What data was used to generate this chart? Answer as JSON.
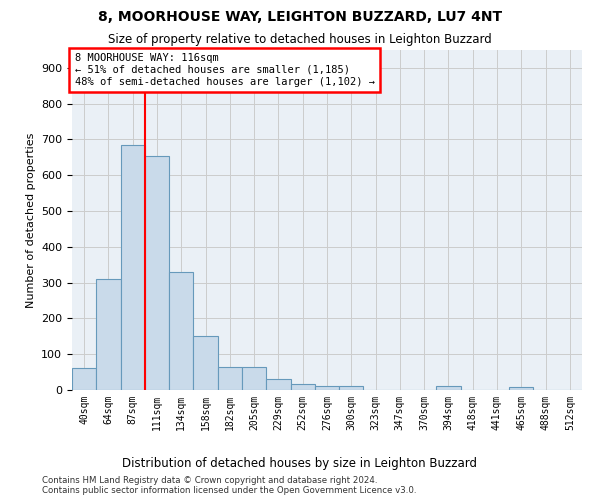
{
  "title1": "8, MOORHOUSE WAY, LEIGHTON BUZZARD, LU7 4NT",
  "title2": "Size of property relative to detached houses in Leighton Buzzard",
  "xlabel": "Distribution of detached houses by size in Leighton Buzzard",
  "ylabel": "Number of detached properties",
  "bar_labels": [
    "40sqm",
    "64sqm",
    "87sqm",
    "111sqm",
    "134sqm",
    "158sqm",
    "182sqm",
    "205sqm",
    "229sqm",
    "252sqm",
    "276sqm",
    "300sqm",
    "323sqm",
    "347sqm",
    "370sqm",
    "394sqm",
    "418sqm",
    "441sqm",
    "465sqm",
    "488sqm",
    "512sqm"
  ],
  "bar_values": [
    62,
    310,
    685,
    655,
    330,
    152,
    65,
    65,
    30,
    18,
    12,
    12,
    0,
    0,
    0,
    10,
    0,
    0,
    8,
    0,
    0
  ],
  "bar_color": "#c9daea",
  "bar_edge_color": "#6699bb",
  "vline_color": "red",
  "vline_x": 2.5,
  "annotation_line1": "8 MOORHOUSE WAY: 116sqm",
  "annotation_line2": "← 51% of detached houses are smaller (1,185)",
  "annotation_line3": "48% of semi-detached houses are larger (1,102) →",
  "annotation_box_color": "white",
  "annotation_box_edge": "red",
  "ylim": [
    0,
    950
  ],
  "yticks": [
    0,
    100,
    200,
    300,
    400,
    500,
    600,
    700,
    800,
    900
  ],
  "footer": "Contains HM Land Registry data © Crown copyright and database right 2024.\nContains public sector information licensed under the Open Government Licence v3.0.",
  "grid_color": "#cccccc",
  "bg_color": "#eaf0f6",
  "fig_width": 6.0,
  "fig_height": 5.0,
  "dpi": 100
}
